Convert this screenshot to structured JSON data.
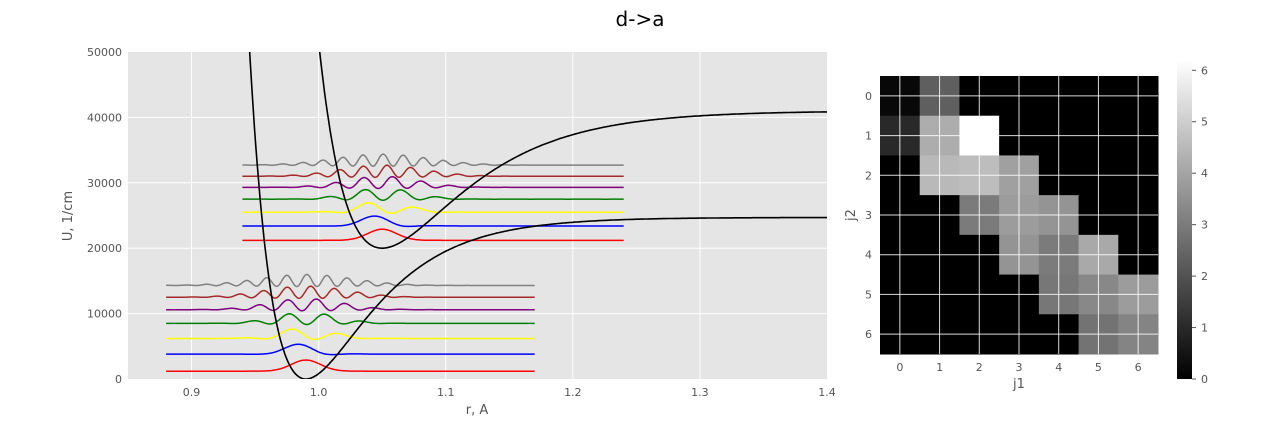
{
  "title": "d->a",
  "chart_data": [
    {
      "type": "line",
      "xlabel": "r, A",
      "ylabel": "U, 1/cm",
      "xlim": [
        0.85,
        1.4
      ],
      "ylim": [
        0,
        50000
      ],
      "xticks": [
        "0.9",
        "1.0",
        "1.1",
        "1.2",
        "1.3",
        "1.4"
      ],
      "yticks": [
        "0",
        "10000",
        "20000",
        "30000",
        "40000",
        "50000"
      ],
      "grid": true,
      "background": "#e5e5e5",
      "potentials": [
        {
          "name": "",
          "color": "#000000",
          "re": 0.99,
          "De": 24700,
          "a": 20,
          "T0": 0
        },
        {
          "name": "",
          "color": "#000000",
          "re": 1.05,
          "De": 21000,
          "a": 16,
          "T0": 20000
        }
      ],
      "lower_state": {
        "x_range": [
          0.88,
          1.17
        ],
        "levels": [
          {
            "v": 0,
            "energy": 1200,
            "color": "#ff0000"
          },
          {
            "v": 1,
            "energy": 3800,
            "color": "#0000ff"
          },
          {
            "v": 2,
            "energy": 6200,
            "color": "#ffff00"
          },
          {
            "v": 3,
            "energy": 8500,
            "color": "#008000"
          },
          {
            "v": 4,
            "energy": 10600,
            "color": "#800080"
          },
          {
            "v": 5,
            "energy": 12500,
            "color": "#a52a2a"
          },
          {
            "v": 6,
            "energy": 14300,
            "color": "#808080"
          }
        ]
      },
      "upper_state": {
        "x_range": [
          0.94,
          1.24
        ],
        "levels": [
          {
            "v": 0,
            "energy": 21200,
            "color": "#ff0000"
          },
          {
            "v": 1,
            "energy": 23400,
            "color": "#0000ff"
          },
          {
            "v": 2,
            "energy": 25500,
            "color": "#ffff00"
          },
          {
            "v": 3,
            "energy": 27500,
            "color": "#008000"
          },
          {
            "v": 4,
            "energy": 29300,
            "color": "#800080"
          },
          {
            "v": 5,
            "energy": 31000,
            "color": "#a52a2a"
          },
          {
            "v": 6,
            "energy": 32700,
            "color": "#808080"
          }
        ]
      }
    },
    {
      "type": "heatmap",
      "xlabel": "j1",
      "ylabel": "j2",
      "xticks": [
        "0",
        "1",
        "2",
        "3",
        "4",
        "5",
        "6"
      ],
      "yticks": [
        "0",
        "1",
        "2",
        "3",
        "4",
        "5",
        "6"
      ],
      "colormap": "gray",
      "vmin": 0,
      "vmax": 6.2,
      "colorbar_ticks": [
        "0",
        "1",
        "2",
        "3",
        "4",
        "5",
        "6"
      ],
      "matrix": [
        [
          0.2,
          2.3,
          0.0,
          0.0,
          0.0,
          0.0,
          0.0
        ],
        [
          1.0,
          4.2,
          6.2,
          0.0,
          0.0,
          0.0,
          0.0
        ],
        [
          0.0,
          4.5,
          4.6,
          3.9,
          0.0,
          0.0,
          0.0
        ],
        [
          0.0,
          0.0,
          3.0,
          3.8,
          3.6,
          0.0,
          0.0
        ],
        [
          0.0,
          0.0,
          0.0,
          3.6,
          3.0,
          4.1,
          0.0
        ],
        [
          0.0,
          0.0,
          0.0,
          0.0,
          2.9,
          3.3,
          3.8
        ],
        [
          0.0,
          0.0,
          0.0,
          0.0,
          0.0,
          2.8,
          3.2
        ]
      ]
    }
  ]
}
